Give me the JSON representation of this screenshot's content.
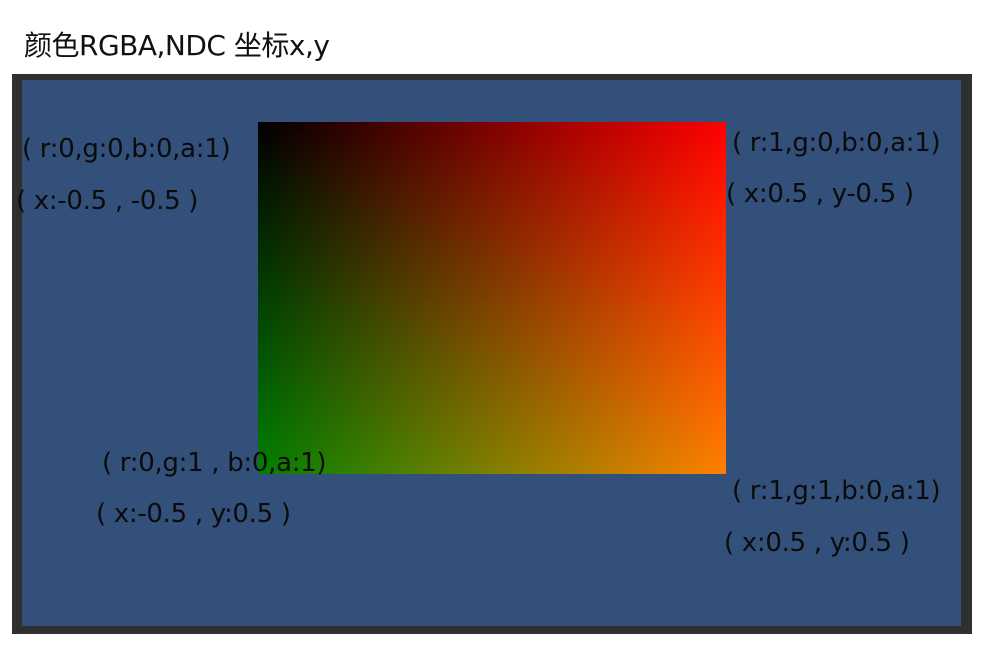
{
  "title": "颜色RGBA,NDC 坐标x,y",
  "vertices": {
    "top_left": {
      "color_label": "( r:0,g:0,b:0,a:1)",
      "coord_label": "( x:-0.5 , -0.5 )",
      "rgba": [
        0,
        0,
        0,
        1
      ],
      "ndc": [
        -0.5,
        -0.5
      ]
    },
    "top_right": {
      "color_label": "( r:1,g:0,b:0,a:1)",
      "coord_label": "( x:0.5 , y-0.5 )",
      "rgba": [
        1,
        0,
        0,
        1
      ],
      "ndc": [
        0.5,
        -0.5
      ]
    },
    "bottom_left": {
      "color_label": "( r:0,g:1 , b:0,a:1)",
      "coord_label": "( x:-0.5 , y:0.5 )",
      "rgba": [
        0,
        1,
        0,
        1
      ],
      "ndc": [
        -0.5,
        0.5
      ]
    },
    "bottom_right": {
      "color_label": "( r:1,g:1,b:0,a:1)",
      "coord_label": "( x:0.5 , y:0.5 )",
      "rgba": [
        1,
        1,
        0,
        1
      ],
      "ndc": [
        0.5,
        0.5
      ]
    }
  },
  "colors": {
    "canvas_background": "#33507a",
    "frame_border": "#2f2f2f"
  }
}
